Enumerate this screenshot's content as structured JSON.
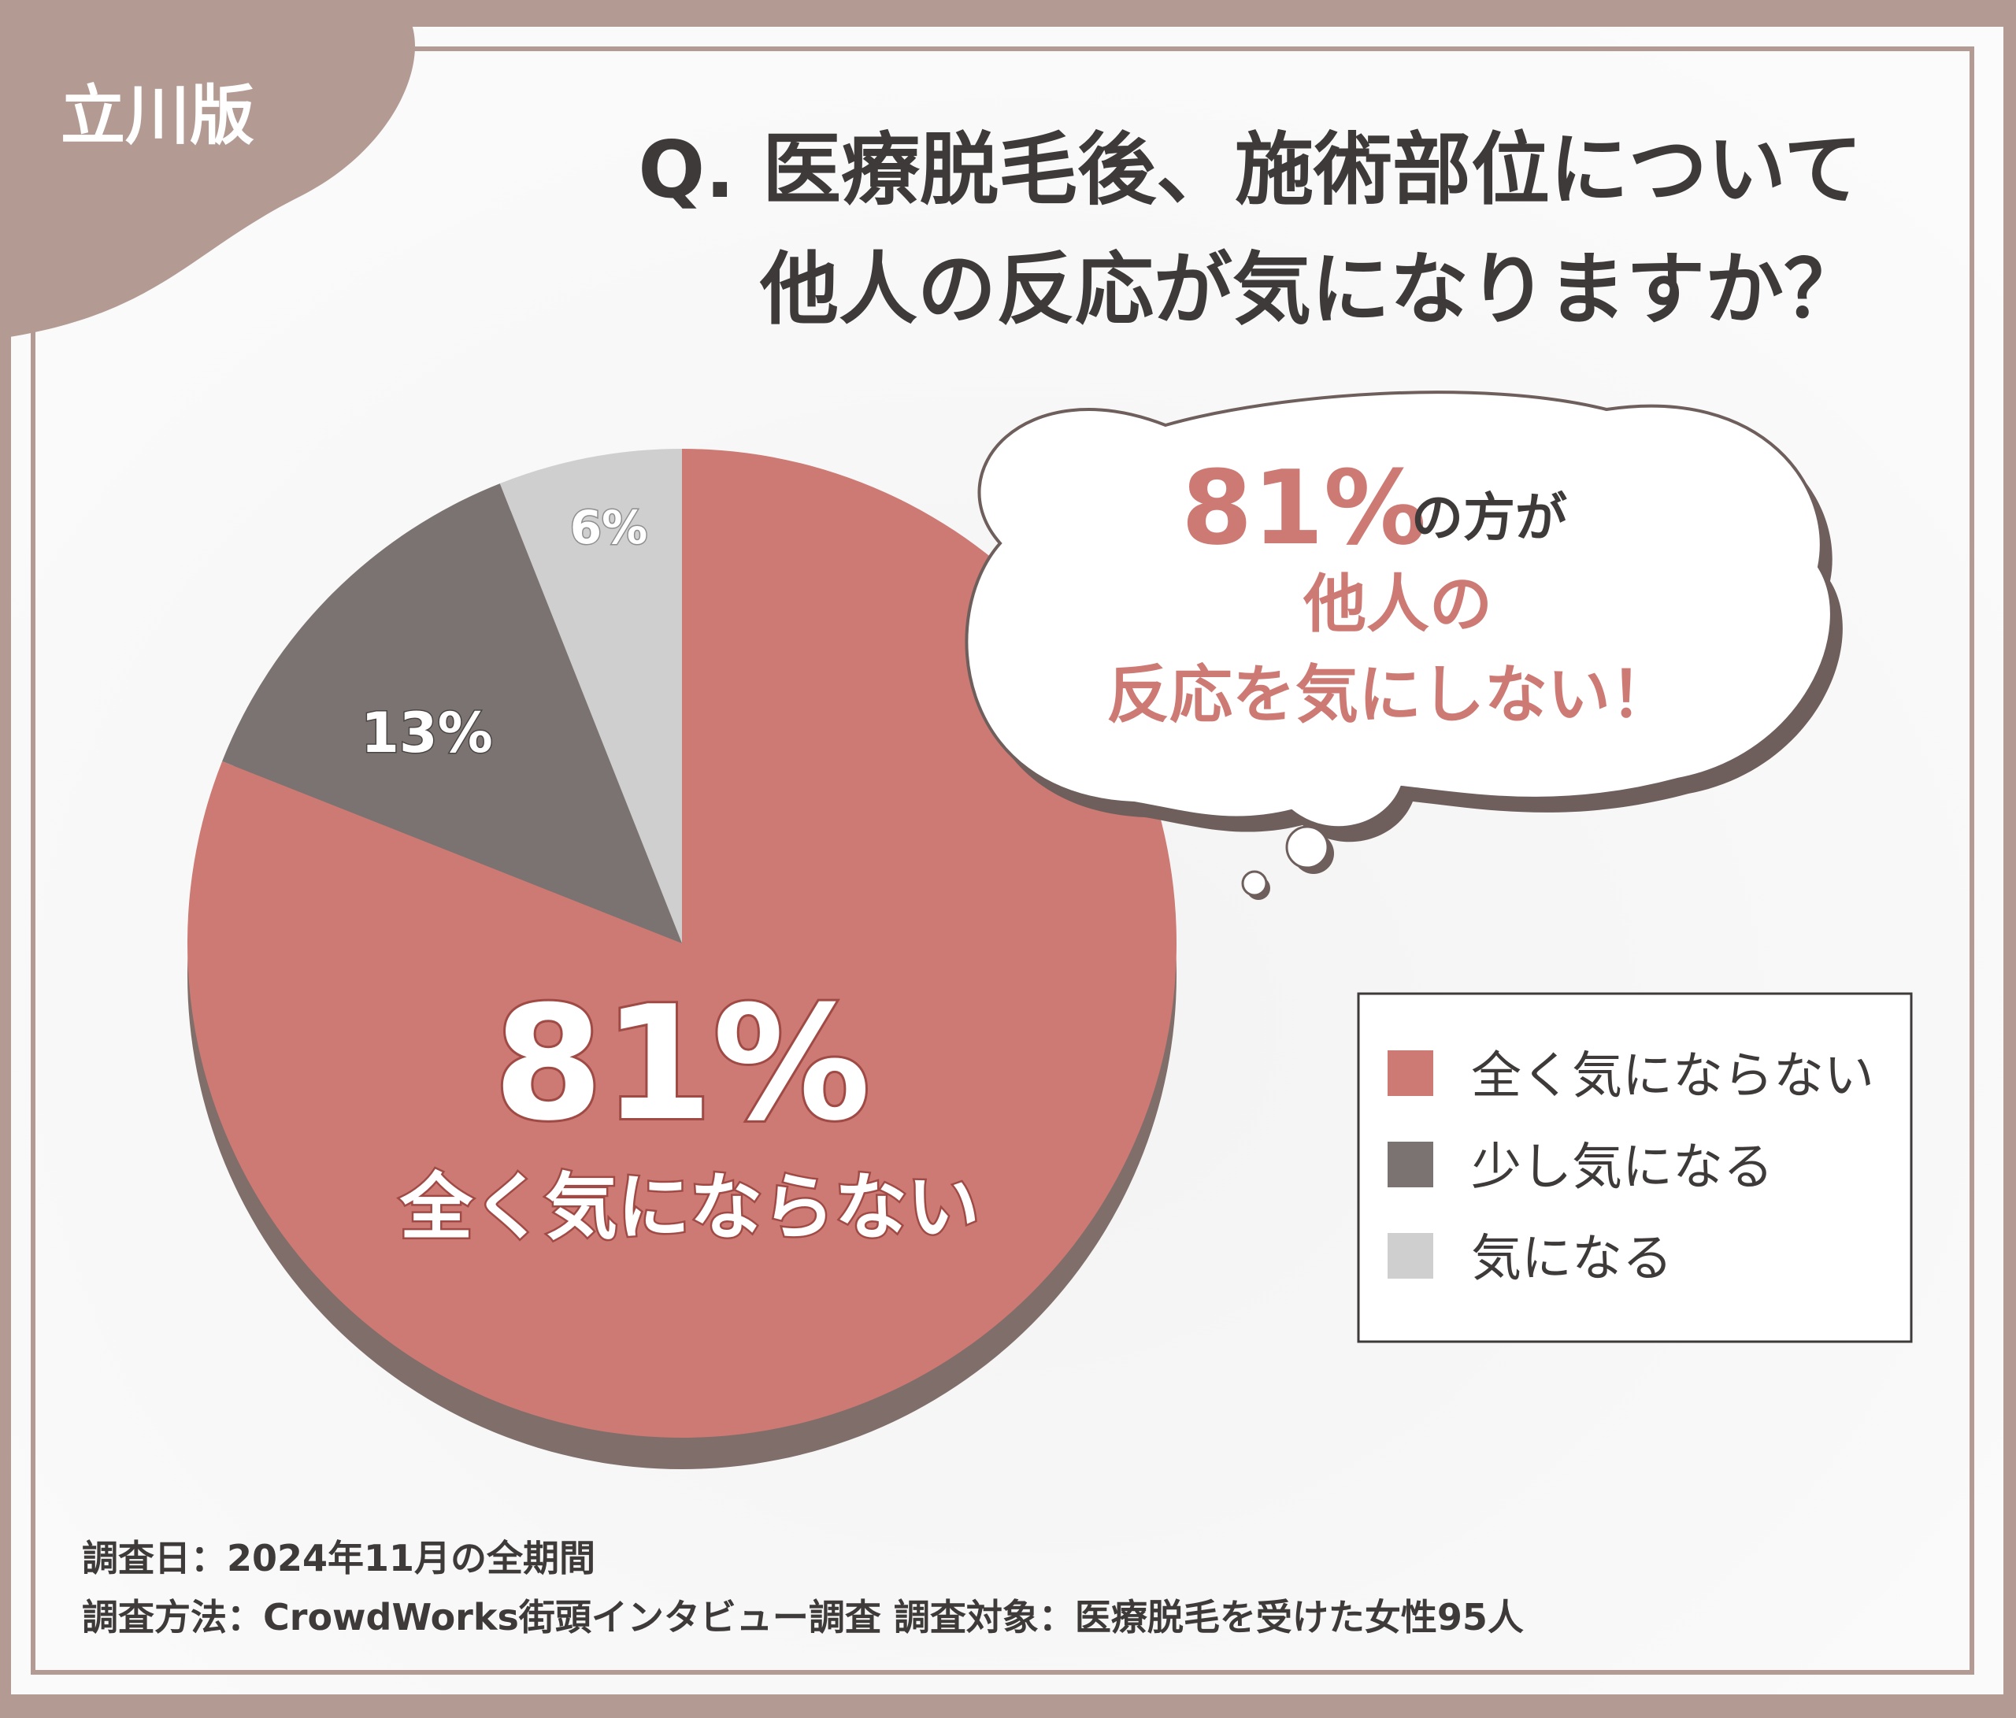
{
  "badge": "立川版",
  "title": {
    "line1": "Q. 医療脱毛後、施術部位について",
    "line2": "他人の反応が気になりますか？"
  },
  "callout": {
    "big": "81%",
    "small": "の方が",
    "line2": "他人の",
    "line3": "反応を気にしない！"
  },
  "chart_data": {
    "type": "pie",
    "slices": [
      {
        "name": "全く気にならない",
        "value": 81,
        "label": "81%",
        "color": "#cd7974"
      },
      {
        "name": "少し気になる",
        "value": 13,
        "label": "13%",
        "color": "#7a7371"
      },
      {
        "name": "気になる",
        "value": 6,
        "label": "6%",
        "color": "#cfcfcf"
      }
    ],
    "main_label": {
      "value": "81%",
      "text": "全く気にならない"
    },
    "legend_position": "right"
  },
  "legend": [
    {
      "label": "全く気にならない",
      "color": "#cd7974"
    },
    {
      "label": "少し気になる",
      "color": "#7a7371"
    },
    {
      "label": "気になる",
      "color": "#cfcfcf"
    }
  ],
  "footer": {
    "line1": "調査日：2024年11月の全期間",
    "line2": "調査方法：CrowdWorks街頭インタビュー調査 調査対象：医療脱毛を受けた女性95人"
  }
}
